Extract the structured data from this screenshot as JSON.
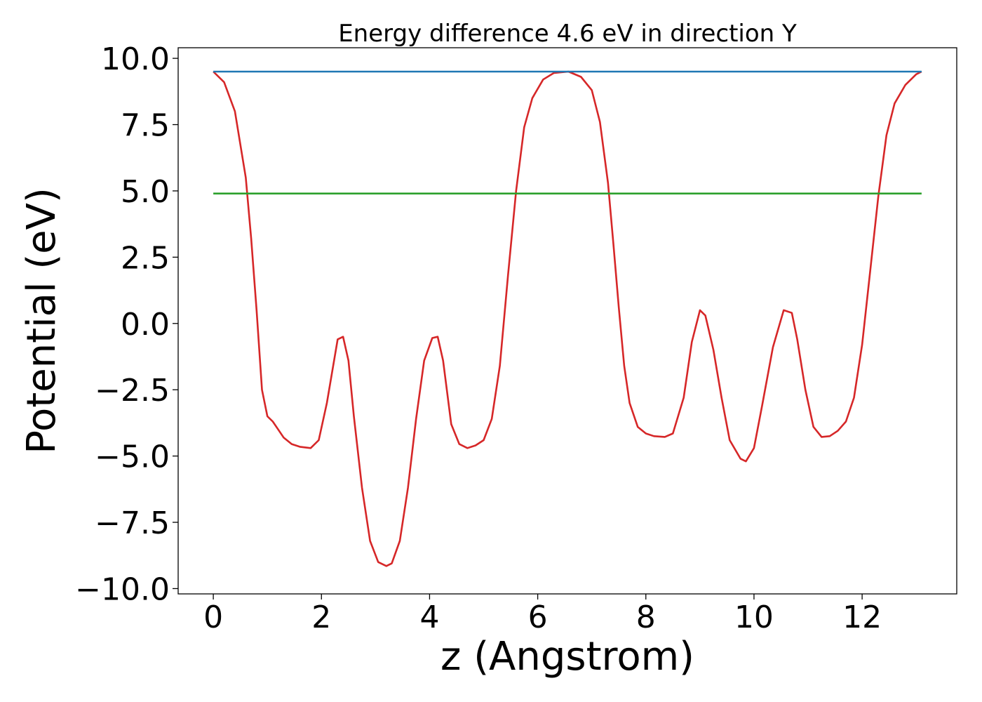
{
  "chart_data": {
    "type": "line",
    "title": "Energy difference 4.6 eV in direction Y",
    "xlabel": "z (Angstrom)",
    "ylabel": "Potential (eV)",
    "xlim": [
      -0.65,
      13.75
    ],
    "ylim": [
      -10.2,
      10.4
    ],
    "xticks": [
      0,
      2,
      4,
      6,
      8,
      10,
      12
    ],
    "xtick_labels": [
      "0",
      "2",
      "4",
      "6",
      "8",
      "10",
      "12"
    ],
    "yticks": [
      -10.0,
      -7.5,
      -5.0,
      -2.5,
      0.0,
      2.5,
      5.0,
      7.5,
      10.0
    ],
    "ytick_labels": [
      "−10.0",
      "−7.5",
      "−5.0",
      "−2.5",
      "0.0",
      "2.5",
      "5.0",
      "7.5",
      "10.0"
    ],
    "grid": false,
    "series": [
      {
        "color": "#d62728",
        "x": [
          0.0,
          0.2,
          0.4,
          0.6,
          0.7,
          0.8,
          0.9,
          1.0,
          1.1,
          1.2,
          1.3,
          1.45,
          1.6,
          1.8,
          1.95,
          2.1,
          2.3,
          2.4,
          2.5,
          2.6,
          2.75,
          2.9,
          3.05,
          3.2,
          3.3,
          3.45,
          3.6,
          3.75,
          3.9,
          4.05,
          4.15,
          4.25,
          4.4,
          4.55,
          4.7,
          4.85,
          5.0,
          5.15,
          5.3,
          5.45,
          5.6,
          5.75,
          5.9,
          6.1,
          6.3,
          6.57,
          6.8,
          7.0,
          7.15,
          7.3,
          7.4,
          7.5,
          7.6,
          7.7,
          7.85,
          8.0,
          8.15,
          8.35,
          8.5,
          8.7,
          8.85,
          9.0,
          9.1,
          9.25,
          9.4,
          9.55,
          9.75,
          9.85,
          10.0,
          10.15,
          10.35,
          10.55,
          10.7,
          10.8,
          10.95,
          11.1,
          11.25,
          11.4,
          11.55,
          11.7,
          11.85,
          12.0,
          12.15,
          12.3,
          12.45,
          12.6,
          12.8,
          13.0,
          13.1
        ],
        "y": [
          9.5,
          9.1,
          8.0,
          5.5,
          3.2,
          0.5,
          -2.5,
          -3.5,
          -3.7,
          -4.0,
          -4.3,
          -4.55,
          -4.65,
          -4.7,
          -4.4,
          -3.0,
          -0.6,
          -0.5,
          -1.4,
          -3.5,
          -6.2,
          -8.2,
          -9.0,
          -9.15,
          -9.05,
          -8.2,
          -6.2,
          -3.6,
          -1.4,
          -0.55,
          -0.5,
          -1.4,
          -3.8,
          -4.55,
          -4.7,
          -4.6,
          -4.4,
          -3.6,
          -1.6,
          1.8,
          5.0,
          7.4,
          8.5,
          9.2,
          9.45,
          9.5,
          9.3,
          8.8,
          7.6,
          5.3,
          3.0,
          0.6,
          -1.6,
          -3.0,
          -3.9,
          -4.15,
          -4.25,
          -4.28,
          -4.15,
          -2.8,
          -0.7,
          0.5,
          0.3,
          -1.0,
          -2.8,
          -4.4,
          -5.1,
          -5.2,
          -4.7,
          -3.1,
          -0.9,
          0.5,
          0.4,
          -0.6,
          -2.5,
          -3.9,
          -4.28,
          -4.25,
          -4.05,
          -3.7,
          -2.8,
          -0.8,
          2.0,
          4.8,
          7.1,
          8.3,
          9.0,
          9.4,
          9.5
        ]
      },
      {
        "color": "#1f77b4",
        "x": [
          0.0,
          13.1
        ],
        "y": [
          9.5,
          9.5
        ]
      },
      {
        "color": "#2ca02c",
        "x": [
          0.0,
          13.1
        ],
        "y": [
          4.9,
          4.9
        ]
      }
    ]
  }
}
